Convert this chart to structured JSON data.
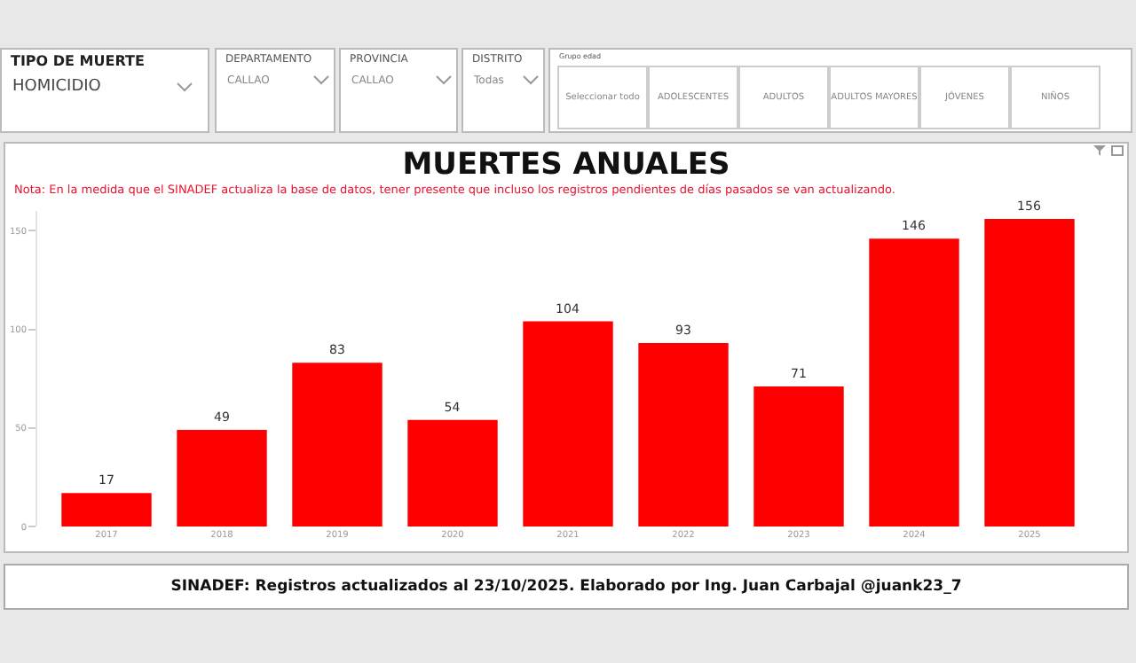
{
  "chart_data": [
    {
      "type": "other",
      "annotations": [
        "TIPO DE MUERTE",
        "HOMICIDIO",
        "DEPARTAMENTO",
        "CALLAO",
        "PROVINCIA",
        "CALLAO",
        "DISTRITO",
        "Todas",
        "Grupo edad"
      ],
      "categories": [
        "Seleccionar todo",
        "ADOLESCENTES",
        "ADULTOS",
        "ADULTOS MAYORES",
        "JÓVENES",
        "NIÑOS"
      ]
    },
    {
      "type": "bar",
      "title": "MUERTES ANUALES",
      "subtitle": "Nota: En la medida que el SINADEF actualiza la base de datos, tener presente que incluso los registros pendientes de días pasados se van actualizando.",
      "categories": [
        "2017",
        "2018",
        "2019",
        "2020",
        "2021",
        "2022",
        "2023",
        "2024",
        "2025"
      ],
      "values": [
        17,
        49,
        83,
        54,
        104,
        93,
        71,
        146,
        156
      ],
      "color": "#ff0000",
      "ylim": [
        0,
        160
      ],
      "yticks": [
        0,
        50,
        100,
        150
      ],
      "grid": false,
      "legend": false,
      "data_labels": true,
      "annotations": [
        "SINADEF: Registros actualizados al 23/10/2025. Elaborado por Ing. Juan Carbajal @juank23_7"
      ]
    }
  ]
}
